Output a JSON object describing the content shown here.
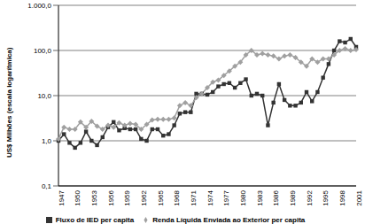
{
  "chart_data": {
    "type": "line",
    "y_label": "US$ Milhões (escala logarítmica)",
    "categories": [
      "1947",
      null,
      null,
      "1950",
      null,
      null,
      "1953",
      null,
      null,
      "1956",
      null,
      null,
      "1959",
      null,
      null,
      "1962",
      null,
      null,
      "1965",
      null,
      null,
      "1968",
      null,
      null,
      "1971",
      null,
      null,
      "1974",
      null,
      null,
      "1977",
      null,
      null,
      "1980",
      null,
      null,
      "1983",
      null,
      null,
      "1986",
      null,
      null,
      "1989",
      null,
      null,
      "1992",
      null,
      null,
      "1995",
      null,
      null,
      "1998",
      null,
      null,
      "2001"
    ],
    "series": [
      {
        "name": "Fluxo de IED per capita",
        "color": "#333333",
        "marker": "square",
        "values": [
          1.0,
          1.4,
          0.9,
          0.7,
          0.9,
          1.6,
          1.0,
          0.8,
          1.2,
          2.0,
          2.6,
          1.7,
          1.9,
          1.8,
          1.8,
          1.1,
          1.0,
          1.8,
          1.8,
          1.3,
          1.4,
          2.2,
          4.0,
          4.3,
          4.3,
          11,
          11,
          10.5,
          12,
          16,
          18,
          19,
          15,
          19,
          23,
          10,
          11,
          10,
          2.2,
          7,
          18,
          8,
          6,
          6,
          7,
          12,
          7.5,
          12,
          25,
          50,
          100,
          160,
          150,
          180,
          120
        ]
      },
      {
        "name": "Renda Líquida Enviada ao Exterior per capita",
        "color": "#a0a0a0",
        "marker": "diamond",
        "values": [
          1.1,
          2.0,
          1.8,
          1.8,
          2.6,
          2.0,
          2.7,
          2.1,
          1.8,
          2.2,
          2.0,
          2.5,
          2.2,
          2.4,
          2.3,
          1.8,
          2.3,
          2.9,
          3.0,
          3.0,
          3.0,
          3.2,
          6.0,
          7.0,
          6.0,
          9.0,
          11,
          15,
          20,
          22,
          28,
          35,
          45,
          55,
          80,
          100,
          80,
          85,
          80,
          75,
          65,
          75,
          80,
          70,
          55,
          45,
          65,
          55,
          65,
          65,
          80,
          100,
          110,
          100,
          105
        ]
      }
    ],
    "log": "y",
    "ylim": [
      0.1,
      1000
    ],
    "yticks": [
      {
        "value": 0.1,
        "label": "0,1"
      },
      {
        "value": 1,
        "label": "1,0"
      },
      {
        "value": 10,
        "label": "10,0"
      },
      {
        "value": 100,
        "label": "100,0"
      },
      {
        "value": 1000,
        "label": "1.000,0"
      }
    ],
    "grid": true,
    "legend": "bottom"
  }
}
